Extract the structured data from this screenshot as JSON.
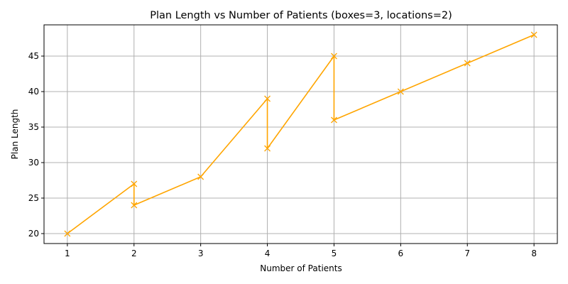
{
  "chart_data": {
    "type": "line",
    "title": "Plan Length vs Number of Patients (boxes=3, locations=2)",
    "xlabel": "Number of Patients",
    "ylabel": "Plan Length",
    "xlim": [
      0.65,
      8.35
    ],
    "ylim": [
      18.6,
      49.4
    ],
    "xticks": [
      1,
      2,
      3,
      4,
      5,
      6,
      7,
      8
    ],
    "yticks": [
      20,
      25,
      30,
      35,
      40,
      45
    ],
    "grid": true,
    "series": [
      {
        "color": "#ffa500",
        "marker": "x",
        "points": [
          {
            "x": 1,
            "y": 20
          },
          {
            "x": 2,
            "y": 27
          },
          {
            "x": 2,
            "y": 24
          },
          {
            "x": 3,
            "y": 28
          },
          {
            "x": 4,
            "y": 39
          },
          {
            "x": 4,
            "y": 32
          },
          {
            "x": 5,
            "y": 45
          },
          {
            "x": 5,
            "y": 36
          },
          {
            "x": 6,
            "y": 40
          },
          {
            "x": 7,
            "y": 44
          },
          {
            "x": 8,
            "y": 48
          }
        ]
      }
    ]
  }
}
